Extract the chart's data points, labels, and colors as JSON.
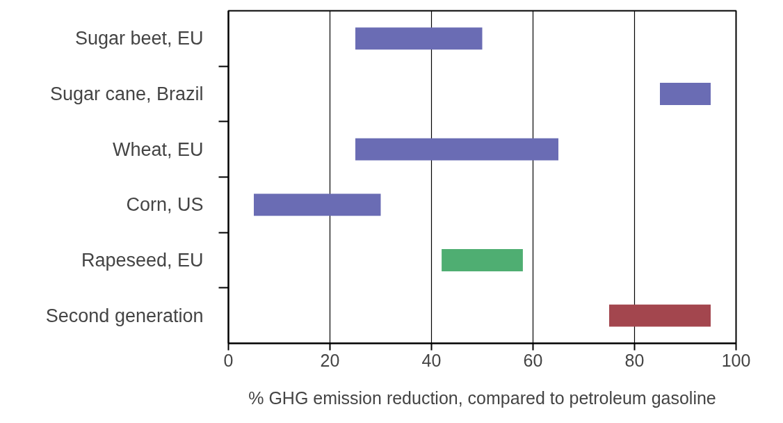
{
  "chart_data": {
    "type": "bar",
    "orientation": "horizontal",
    "categories": [
      "Sugar beet, EU",
      "Sugar cane, Brazil",
      "Wheat, EU",
      "Corn, US",
      "Rapeseed, EU",
      "Second generation"
    ],
    "base": [
      25,
      85,
      25,
      5,
      42,
      75
    ],
    "values": [
      25,
      10,
      40,
      25,
      16,
      20
    ],
    "colors": [
      "#6a6cb4",
      "#6a6cb4",
      "#6a6cb4",
      "#6a6cb4",
      "#4fae72",
      "#a3464e"
    ],
    "xlim": [
      0,
      100
    ],
    "xticks": [
      0,
      20,
      40,
      60,
      80,
      100
    ],
    "xlabel": "% GHG emission reduction, compared to petroleum gasoline",
    "grid": "x"
  }
}
